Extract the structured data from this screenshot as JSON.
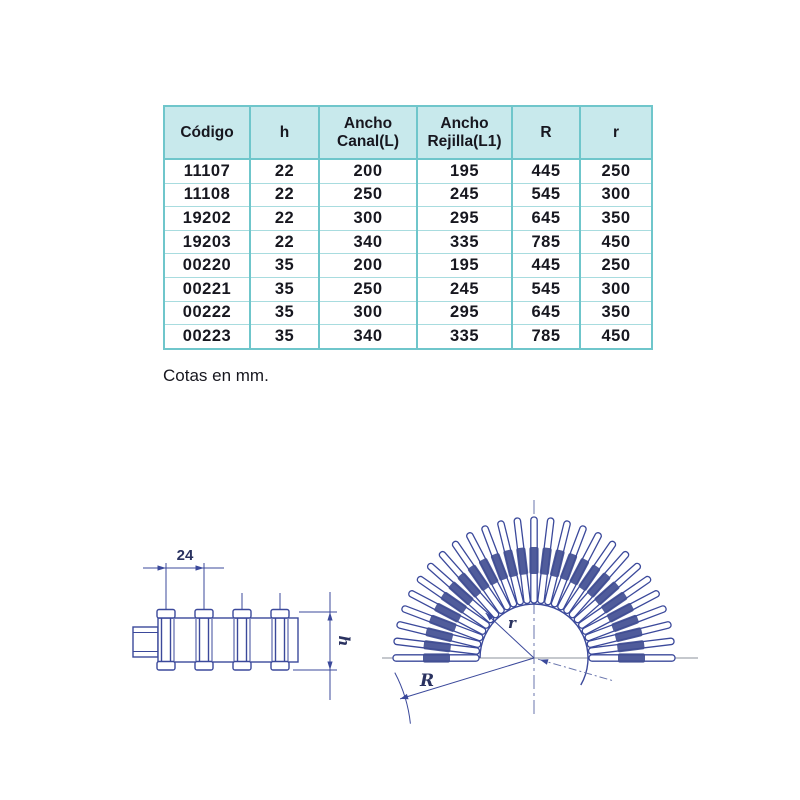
{
  "table": {
    "headers": [
      "Código",
      "h",
      "Ancho Canal(L)",
      "Ancho Rejilla(L1)",
      "R",
      "r"
    ],
    "rows": [
      [
        "11107",
        "22",
        "200",
        "195",
        "445",
        "250"
      ],
      [
        "11108",
        "22",
        "250",
        "245",
        "545",
        "300"
      ],
      [
        "19202",
        "22",
        "300",
        "295",
        "645",
        "350"
      ],
      [
        "19203",
        "22",
        "340",
        "335",
        "785",
        "450"
      ],
      [
        "00220",
        "35",
        "200",
        "195",
        "445",
        "250"
      ],
      [
        "00221",
        "35",
        "250",
        "245",
        "545",
        "300"
      ],
      [
        "00222",
        "35",
        "300",
        "295",
        "645",
        "350"
      ],
      [
        "00223",
        "35",
        "340",
        "335",
        "785",
        "450"
      ]
    ],
    "units_caption": "Cotas en mm."
  },
  "drawings": {
    "side_view": {
      "pitch_label": "24",
      "height_label": "h"
    },
    "fan_view": {
      "inner_radius_label": "r",
      "outer_radius_label": "R",
      "slat_count": 27
    }
  },
  "colors": {
    "table_border": "#6fc6cb",
    "table_row_line": "#a8dcdf",
    "header_background": "#c8e9ec",
    "text": "#17171f",
    "drawing_line": "#3b499b",
    "centerline_gray": "#8b919b"
  }
}
